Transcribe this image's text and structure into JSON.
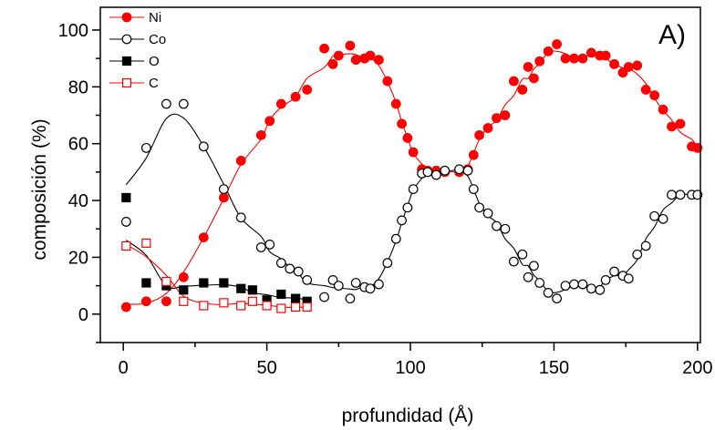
{
  "chart_data": {
    "type": "scatter",
    "panel_label": "A)",
    "xlabel": "profundidad (Å)",
    "ylabel": "composición (%)",
    "xlim": [
      -8,
      201
    ],
    "ylim": [
      -10,
      108
    ],
    "xticks": [
      0,
      50,
      100,
      150,
      200
    ],
    "yticks": [
      0,
      20,
      40,
      60,
      80,
      100
    ],
    "grid": false,
    "legend_position": "top-left",
    "series": [
      {
        "name": "Ni",
        "color": "#ff0000",
        "marker": "circle-filled",
        "x": [
          1,
          8,
          15,
          21,
          28,
          35,
          41,
          48,
          51,
          55,
          60,
          64,
          70,
          73,
          75,
          79,
          81,
          84,
          86,
          89,
          92,
          95,
          97,
          99,
          101,
          104,
          106,
          109,
          112,
          117,
          120,
          122,
          124,
          127,
          130,
          133,
          136,
          139,
          141,
          143,
          145,
          148,
          151,
          154,
          157,
          160,
          163,
          166,
          168,
          171,
          174,
          176,
          179,
          182,
          185,
          188,
          191,
          194,
          198,
          200
        ],
        "y": [
          2.5,
          4.5,
          4.5,
          13,
          27,
          41,
          54,
          63,
          68,
          74,
          76.5,
          79,
          93.5,
          88,
          91,
          94.5,
          89.5,
          90,
          91,
          89.5,
          82,
          74,
          67,
          62,
          57,
          51,
          50.5,
          50.5,
          50,
          50,
          51,
          56,
          63,
          65.5,
          69,
          70,
          82,
          79,
          87,
          83,
          89,
          92.5,
          95,
          90,
          90,
          90,
          92,
          91,
          91,
          88,
          85,
          87,
          87.5,
          79,
          77,
          72,
          66,
          67,
          59,
          58.5
        ]
      },
      {
        "name": "Co",
        "color": "#000000",
        "marker": "circle-open",
        "x": [
          1,
          8,
          15,
          21,
          28,
          35,
          41,
          48,
          51,
          55,
          58,
          61,
          64,
          70,
          73,
          75,
          79,
          81,
          84,
          86,
          89,
          92,
          95,
          97,
          99,
          101,
          104,
          106,
          109,
          112,
          117,
          120,
          122,
          124,
          127,
          130,
          133,
          136,
          139,
          141,
          143,
          145,
          148,
          151,
          154,
          157,
          160,
          163,
          166,
          168,
          171,
          174,
          176,
          179,
          182,
          185,
          188,
          191,
          194,
          198,
          200
        ],
        "y": [
          32.5,
          58.5,
          74,
          74,
          59,
          44,
          34,
          23.5,
          24.5,
          18,
          16,
          15,
          12,
          6,
          12,
          10,
          5.5,
          11,
          9.5,
          9,
          10.5,
          18,
          26.5,
          33,
          37.5,
          44,
          49.5,
          50,
          49,
          50.5,
          51,
          50.5,
          44,
          37.5,
          35.5,
          31,
          30,
          18.5,
          21,
          13,
          17,
          11,
          7.5,
          5.5,
          10,
          10.5,
          10.5,
          9,
          8.5,
          12,
          15,
          13.5,
          12.5,
          21,
          24,
          34.5,
          33.5,
          42,
          42,
          42,
          42
        ]
      },
      {
        "name": "O",
        "color": "#000000",
        "marker": "square-filled",
        "x": [
          1,
          8,
          15,
          21,
          28,
          35,
          41,
          45,
          50,
          55,
          60,
          64
        ],
        "y": [
          41,
          11,
          10,
          8.5,
          11,
          11,
          9,
          8.5,
          5,
          7,
          5.5,
          4.5
        ]
      },
      {
        "name": "C",
        "color": "#ff0000",
        "marker": "square-open",
        "x": [
          1,
          8,
          15,
          21,
          28,
          35,
          41,
          45,
          50,
          55,
          60,
          64
        ],
        "y": [
          24,
          25,
          11.5,
          4.5,
          3,
          4,
          3,
          4.5,
          3,
          2,
          2.5,
          2.5
        ]
      }
    ]
  }
}
